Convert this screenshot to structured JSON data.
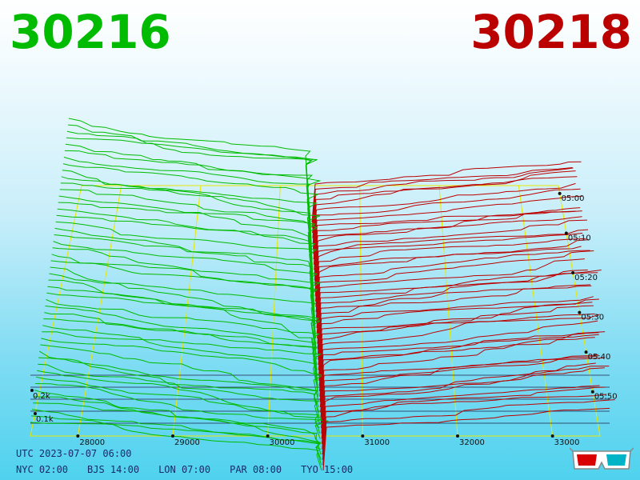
{
  "bid": {
    "label": "30216",
    "color": "#00bb00"
  },
  "ask": {
    "label": "30218",
    "color": "#bb0000"
  },
  "utc": "UTC 2023-07-07 06:00",
  "timezones": [
    {
      "city": "NYC",
      "time": "02:00"
    },
    {
      "city": "BJS",
      "time": "14:00"
    },
    {
      "city": "LON",
      "time": "07:00"
    },
    {
      "city": "PAR",
      "time": "08:00"
    },
    {
      "city": "TYO",
      "time": "15:00"
    }
  ],
  "chart_data": {
    "type": "line",
    "x_ticks": [
      "28000",
      "29000",
      "30000",
      "31000",
      "32000",
      "33000"
    ],
    "time_ticks": [
      "05:00",
      "05:10",
      "05:20",
      "05:30",
      "05:40",
      "05:50"
    ],
    "depth_ticks": [
      "0.2k",
      "0.1k"
    ],
    "xlim": [
      27500,
      33500
    ],
    "bid_color": "#00bb00",
    "ask_color": "#bb0000",
    "grid_color": "#e8e800",
    "grid": true
  }
}
